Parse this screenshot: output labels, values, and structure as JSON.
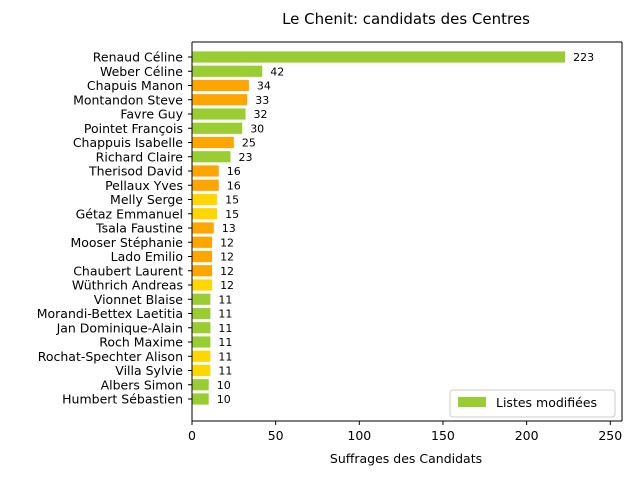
{
  "chart_data": {
    "type": "bar",
    "orientation": "horizontal",
    "title": "Le Chenit: candidats des Centres",
    "xlabel": "Suffrages des Candidats",
    "ylabel": "",
    "xlim": [
      0,
      257
    ],
    "xticks": [
      0,
      50,
      100,
      150,
      200,
      250
    ],
    "grid": false,
    "legend": {
      "position": "bottom-right",
      "label": "Listes modifiées",
      "color": "#9acd32"
    },
    "categories": [
      "Renaud Céline",
      "Weber Céline",
      "Chapuis Manon",
      "Montandon Steve",
      "Favre Guy",
      "Pointet François",
      "Chappuis Isabelle",
      "Richard Claire",
      "Therisod David",
      "Pellaux Yves",
      "Melly Serge",
      "Gétaz Emmanuel",
      "Tsala Faustine",
      "Mooser Stéphanie",
      "Lado Emilio",
      "Chaubert Laurent",
      "Wüthrich Andreas",
      "Vionnet Blaise",
      "Morandi-Bettex Laetitia",
      "Jan Dominique-Alain",
      "Roch Maxime",
      "Rochat-Spechter Alison",
      "Villa Sylvie",
      "Albers Simon",
      "Humbert Sébastien"
    ],
    "values": [
      223,
      42,
      34,
      33,
      32,
      30,
      25,
      23,
      16,
      16,
      15,
      15,
      13,
      12,
      12,
      12,
      12,
      11,
      11,
      11,
      11,
      11,
      11,
      10,
      10
    ],
    "colors": [
      "#9acd32",
      "#9acd32",
      "#ffa500",
      "#ffa500",
      "#9acd32",
      "#9acd32",
      "#ffa500",
      "#9acd32",
      "#ffa500",
      "#ffa500",
      "#ffd700",
      "#ffd700",
      "#ffa500",
      "#ffa500",
      "#ffa500",
      "#ffa500",
      "#ffd700",
      "#9acd32",
      "#9acd32",
      "#9acd32",
      "#9acd32",
      "#ffd700",
      "#ffd700",
      "#9acd32",
      "#9acd32"
    ]
  }
}
